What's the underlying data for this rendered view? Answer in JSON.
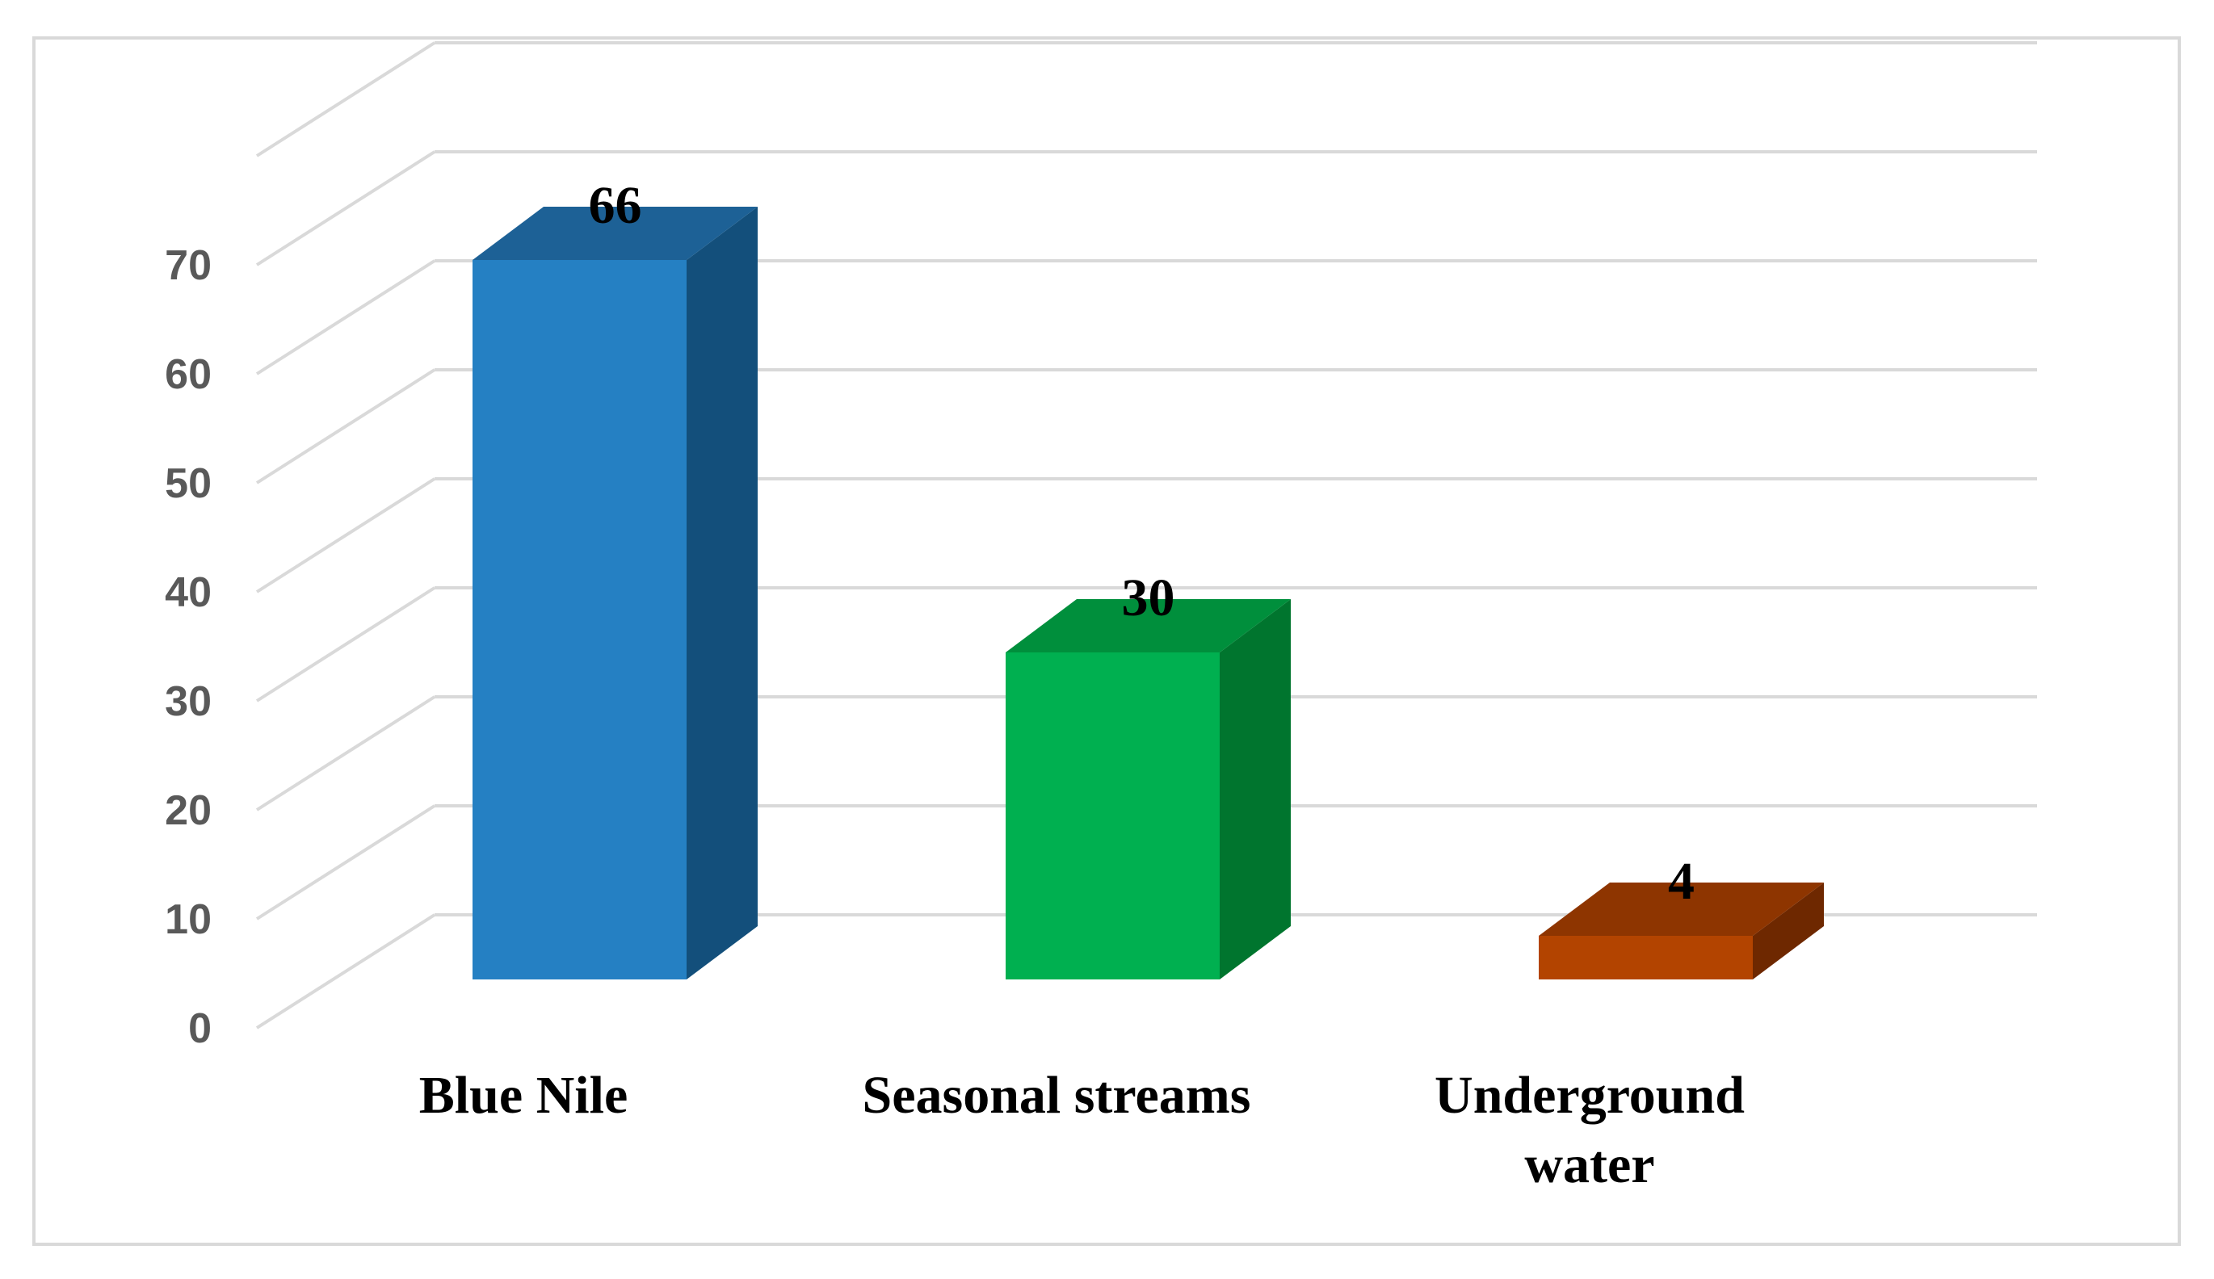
{
  "chart_data": {
    "type": "bar",
    "style": "3d-column",
    "categories": [
      "Blue Nile",
      "Seasonal streams",
      "Underground water"
    ],
    "category_lines": [
      [
        "Blue Nile"
      ],
      [
        "Seasonal streams"
      ],
      [
        "Underground",
        "water"
      ]
    ],
    "values": [
      66,
      30,
      4
    ],
    "data_labels": [
      "66",
      "30",
      "4"
    ],
    "colors": [
      {
        "front": "#2580c3",
        "side": "#134f7b",
        "top": "#1d6196"
      },
      {
        "front": "#00b050",
        "side": "#00752e",
        "top": "#008f3c"
      },
      {
        "front": "#b34400",
        "side": "#6e2800",
        "top": "#8e3500"
      }
    ],
    "y_ticks": [
      0,
      10,
      20,
      30,
      40,
      50,
      60,
      70
    ],
    "ylim": [
      0,
      80
    ],
    "grid": true,
    "legend": "none",
    "title": "",
    "xlabel": "",
    "ylabel": "",
    "grid_color": "#d9d9d9"
  }
}
